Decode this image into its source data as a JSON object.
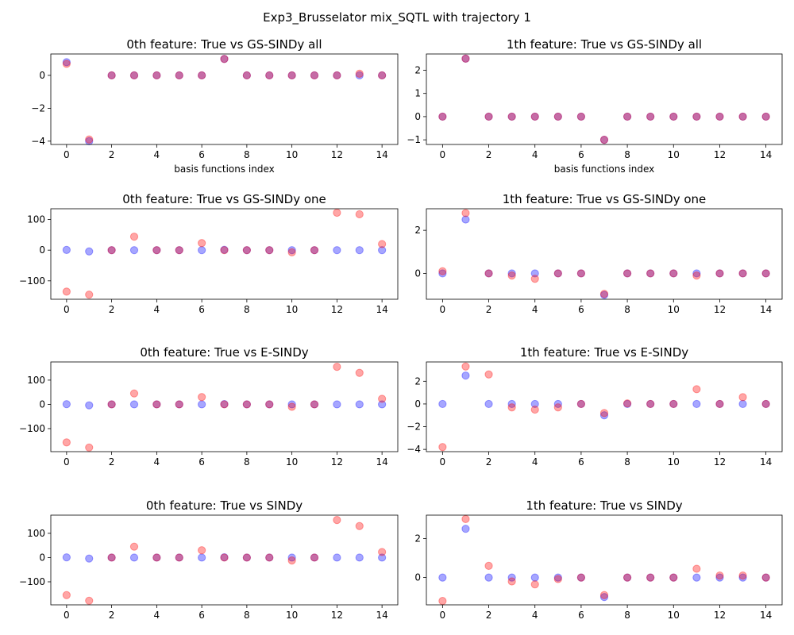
{
  "figure": {
    "suptitle": "Exp3_Brusselator mix_SQTL with trajectory 1"
  },
  "colors": {
    "true_series": "#0000ff",
    "estimated_series": "#ff0000",
    "overlap": "#800080"
  },
  "chart_data": [
    {
      "type": "scatter",
      "title": "0th feature: True vs GS-SINDy all",
      "xlabel": "basis functions index",
      "ylabel": "",
      "x": [
        0,
        1,
        2,
        3,
        4,
        5,
        6,
        7,
        8,
        9,
        10,
        11,
        12,
        13,
        14
      ],
      "xticks": [
        0,
        2,
        4,
        6,
        8,
        10,
        12,
        14
      ],
      "yticks": [
        -4,
        -2,
        0
      ],
      "ylim": [
        -4.2,
        1.3
      ],
      "xlim": [
        -0.7,
        14.7
      ],
      "series": [
        {
          "role": "true",
          "values": [
            0.8,
            -4,
            0,
            0,
            0,
            0,
            0,
            1,
            0,
            0,
            0,
            0,
            0,
            0,
            0
          ]
        },
        {
          "role": "estimated",
          "values": [
            0.7,
            -3.9,
            0,
            0,
            0,
            0,
            0,
            1,
            0,
            0,
            0,
            0,
            0,
            0.1,
            0
          ]
        }
      ]
    },
    {
      "type": "scatter",
      "title": "1th feature: True vs GS-SINDy all",
      "xlabel": "basis functions index",
      "ylabel": "",
      "x": [
        0,
        1,
        2,
        3,
        4,
        5,
        6,
        7,
        8,
        9,
        10,
        11,
        12,
        13,
        14
      ],
      "xticks": [
        0,
        2,
        4,
        6,
        8,
        10,
        12,
        14
      ],
      "yticks": [
        -1,
        0,
        1,
        2
      ],
      "ylim": [
        -1.2,
        2.7
      ],
      "xlim": [
        -0.7,
        14.7
      ],
      "series": [
        {
          "role": "true",
          "values": [
            0,
            2.5,
            0,
            0,
            0,
            0,
            0,
            -1,
            0,
            0,
            0,
            0,
            0,
            0,
            0
          ]
        },
        {
          "role": "estimated",
          "values": [
            0,
            2.5,
            0,
            0,
            0,
            0,
            0,
            -1,
            0,
            0,
            0,
            0,
            0,
            0,
            0
          ]
        }
      ]
    },
    {
      "type": "scatter",
      "title": "0th feature: True vs GS-SINDy one",
      "xlabel": "",
      "ylabel": "",
      "x": [
        0,
        1,
        2,
        3,
        4,
        5,
        6,
        7,
        8,
        9,
        10,
        11,
        12,
        13,
        14
      ],
      "xticks": [
        0,
        2,
        4,
        6,
        8,
        10,
        12,
        14
      ],
      "yticks": [
        -100,
        0,
        100
      ],
      "ylim": [
        -160,
        135
      ],
      "xlim": [
        -0.7,
        14.7
      ],
      "series": [
        {
          "role": "true",
          "values": [
            0.8,
            -4,
            0,
            0,
            0,
            0,
            0,
            1,
            0,
            0,
            0,
            0,
            0,
            0,
            0
          ]
        },
        {
          "role": "estimated",
          "values": [
            -135,
            -145,
            0,
            44,
            0,
            0,
            23,
            0,
            0,
            0,
            -7,
            0,
            122,
            117,
            20
          ]
        }
      ]
    },
    {
      "type": "scatter",
      "title": "1th feature: True vs GS-SINDy one",
      "xlabel": "",
      "ylabel": "",
      "x": [
        0,
        1,
        2,
        3,
        4,
        5,
        6,
        7,
        8,
        9,
        10,
        11,
        12,
        13,
        14
      ],
      "xticks": [
        0,
        2,
        4,
        6,
        8,
        10,
        12,
        14
      ],
      "yticks": [
        0,
        2
      ],
      "ylim": [
        -1.2,
        3.0
      ],
      "xlim": [
        -0.7,
        14.7
      ],
      "series": [
        {
          "role": "true",
          "values": [
            0,
            2.5,
            0,
            0,
            0,
            0,
            0,
            -1,
            0,
            0,
            0,
            0,
            0,
            0,
            0
          ]
        },
        {
          "role": "estimated",
          "values": [
            0.1,
            2.8,
            0,
            -0.1,
            -0.25,
            0,
            0,
            -0.95,
            0,
            0,
            0,
            -0.1,
            0,
            0,
            0
          ]
        }
      ]
    },
    {
      "type": "scatter",
      "title": "0th feature: True vs E-SINDy",
      "xlabel": "",
      "ylabel": "",
      "x": [
        0,
        1,
        2,
        3,
        4,
        5,
        6,
        7,
        8,
        9,
        10,
        11,
        12,
        13,
        14
      ],
      "xticks": [
        0,
        2,
        4,
        6,
        8,
        10,
        12,
        14
      ],
      "yticks": [
        -100,
        0,
        100
      ],
      "ylim": [
        -195,
        175
      ],
      "xlim": [
        -0.7,
        14.7
      ],
      "series": [
        {
          "role": "true",
          "values": [
            0.8,
            -4,
            0,
            0,
            0,
            0,
            0,
            1,
            0,
            0,
            0,
            0,
            0,
            0,
            0
          ]
        },
        {
          "role": "estimated",
          "values": [
            -157,
            -178,
            0,
            45,
            0,
            0,
            30,
            0,
            0,
            0,
            -10,
            0,
            155,
            130,
            23
          ]
        }
      ]
    },
    {
      "type": "scatter",
      "title": "1th feature: True vs E-SINDy",
      "xlabel": "",
      "ylabel": "",
      "x": [
        0,
        1,
        2,
        3,
        4,
        5,
        6,
        7,
        8,
        9,
        10,
        11,
        12,
        13,
        14
      ],
      "xticks": [
        0,
        2,
        4,
        6,
        8,
        10,
        12,
        14
      ],
      "yticks": [
        -4,
        -2,
        0,
        2
      ],
      "ylim": [
        -4.2,
        3.7
      ],
      "xlim": [
        -0.7,
        14.7
      ],
      "series": [
        {
          "role": "true",
          "values": [
            0,
            2.5,
            0,
            0,
            0,
            0,
            0,
            -1,
            0,
            0,
            0,
            0,
            0,
            0,
            0
          ]
        },
        {
          "role": "estimated",
          "values": [
            -3.8,
            3.3,
            2.6,
            -0.3,
            -0.5,
            -0.3,
            0,
            -0.8,
            0.05,
            0,
            0,
            1.3,
            0,
            0.6,
            0
          ]
        }
      ]
    },
    {
      "type": "scatter",
      "title": "0th feature: True vs SINDy",
      "xlabel": "",
      "ylabel": "",
      "x": [
        0,
        1,
        2,
        3,
        4,
        5,
        6,
        7,
        8,
        9,
        10,
        11,
        12,
        13,
        14
      ],
      "xticks": [
        0,
        2,
        4,
        6,
        8,
        10,
        12,
        14
      ],
      "yticks": [
        -100,
        0,
        100
      ],
      "ylim": [
        -195,
        175
      ],
      "xlim": [
        -0.7,
        14.7
      ],
      "series": [
        {
          "role": "true",
          "values": [
            0.8,
            -4,
            0,
            0,
            0,
            0,
            0,
            1,
            0,
            0,
            0,
            0,
            0,
            0,
            0
          ]
        },
        {
          "role": "estimated",
          "values": [
            -155,
            -178,
            0,
            45,
            0,
            0,
            30,
            0,
            0,
            0,
            -12,
            0,
            155,
            130,
            23
          ]
        }
      ]
    },
    {
      "type": "scatter",
      "title": "1th feature: True vs SINDy",
      "xlabel": "",
      "ylabel": "",
      "x": [
        0,
        1,
        2,
        3,
        4,
        5,
        6,
        7,
        8,
        9,
        10,
        11,
        12,
        13,
        14
      ],
      "xticks": [
        0,
        2,
        4,
        6,
        8,
        10,
        12,
        14
      ],
      "yticks": [
        0,
        2
      ],
      "ylim": [
        -1.4,
        3.2
      ],
      "xlim": [
        -0.7,
        14.7
      ],
      "series": [
        {
          "role": "true",
          "values": [
            0,
            2.5,
            0,
            0,
            0,
            0,
            0,
            -1,
            0,
            0,
            0,
            0,
            0,
            0,
            0
          ]
        },
        {
          "role": "estimated",
          "values": [
            -1.2,
            3.0,
            0.6,
            -0.2,
            -0.35,
            -0.08,
            0,
            -0.9,
            0,
            0,
            0,
            0.45,
            0.1,
            0.1,
            0
          ]
        }
      ]
    }
  ]
}
